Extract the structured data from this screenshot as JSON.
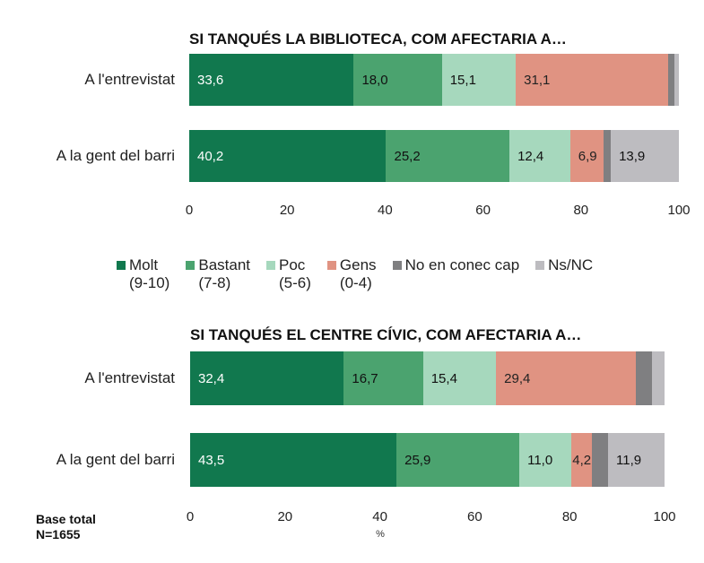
{
  "chart_data": [
    {
      "type": "bar",
      "stacked": true,
      "orientation": "horizontal",
      "title": "SI TANQUÉS LA BIBLIOTECA, COM AFECTARIA A…",
      "categories": [
        "A l'entrevistat",
        "A la gent del barri"
      ],
      "xlim": [
        0,
        100
      ],
      "xticks": [
        "0",
        "20",
        "40",
        "60",
        "80",
        "100"
      ],
      "series": [
        {
          "name": "Molt (9-10)",
          "values": [
            33.6,
            40.2
          ],
          "labels": [
            "33,6",
            "40,2"
          ]
        },
        {
          "name": "Bastant (7-8)",
          "values": [
            18.0,
            25.2
          ],
          "labels": [
            "18,0",
            "25,2"
          ]
        },
        {
          "name": "Poc (5-6)",
          "values": [
            15.1,
            12.4
          ],
          "labels": [
            "15,1",
            "12,4"
          ]
        },
        {
          "name": "Gens (0-4)",
          "values": [
            31.1,
            6.9
          ],
          "labels": [
            "31,1",
            "6,9"
          ]
        },
        {
          "name": "No en conec cap",
          "values": [
            1.3,
            1.4
          ],
          "labels": [
            "",
            ""
          ]
        },
        {
          "name": "Ns/NC",
          "values": [
            0.9,
            13.9
          ],
          "labels": [
            "",
            "13,9"
          ]
        }
      ]
    },
    {
      "type": "bar",
      "stacked": true,
      "orientation": "horizontal",
      "title": "SI TANQUÉS EL CENTRE CÍVIC, COM AFECTARIA A…",
      "categories": [
        "A l'entrevistat",
        "A la gent del barri"
      ],
      "xlim": [
        0,
        100
      ],
      "xticks": [
        "0",
        "20",
        "40",
        "60",
        "80",
        "100"
      ],
      "xlabel": "%",
      "series": [
        {
          "name": "Molt (9-10)",
          "values": [
            32.4,
            43.5
          ],
          "labels": [
            "32,4",
            "43,5"
          ]
        },
        {
          "name": "Bastant (7-8)",
          "values": [
            16.7,
            25.9
          ],
          "labels": [
            "16,7",
            "25,9"
          ]
        },
        {
          "name": "Poc (5-6)",
          "values": [
            15.4,
            11.0
          ],
          "labels": [
            "15,4",
            "11,0"
          ]
        },
        {
          "name": "Gens (0-4)",
          "values": [
            29.4,
            4.2
          ],
          "labels": [
            "29,4",
            "4,2"
          ]
        },
        {
          "name": "No en conec cap",
          "values": [
            3.4,
            3.5
          ],
          "labels": [
            "",
            ""
          ]
        },
        {
          "name": "Ns/NC",
          "values": [
            2.7,
            11.9
          ],
          "labels": [
            "",
            "11,9"
          ]
        }
      ]
    }
  ],
  "legend": [
    {
      "line1": "Molt",
      "line2": "(9-10)",
      "color": "#11784e",
      "text": "#ffffff"
    },
    {
      "line1": "Bastant",
      "line2": "(7-8)",
      "color": "#4ba36f",
      "text": "#111111"
    },
    {
      "line1": "Poc",
      "line2": "(5-6)",
      "color": "#a6d8bd",
      "text": "#111111"
    },
    {
      "line1": "Gens",
      "line2": "(0-4)",
      "color": "#e09382",
      "text": "#222222"
    },
    {
      "line1": "No en conec cap",
      "line2": "",
      "color": "#7f7f81",
      "text": "#111111"
    },
    {
      "line1": "Ns/NC",
      "line2": "",
      "color": "#bdbcc0",
      "text": "#111111"
    }
  ],
  "base": {
    "line1": "Base total",
    "line2": "N=1655"
  }
}
